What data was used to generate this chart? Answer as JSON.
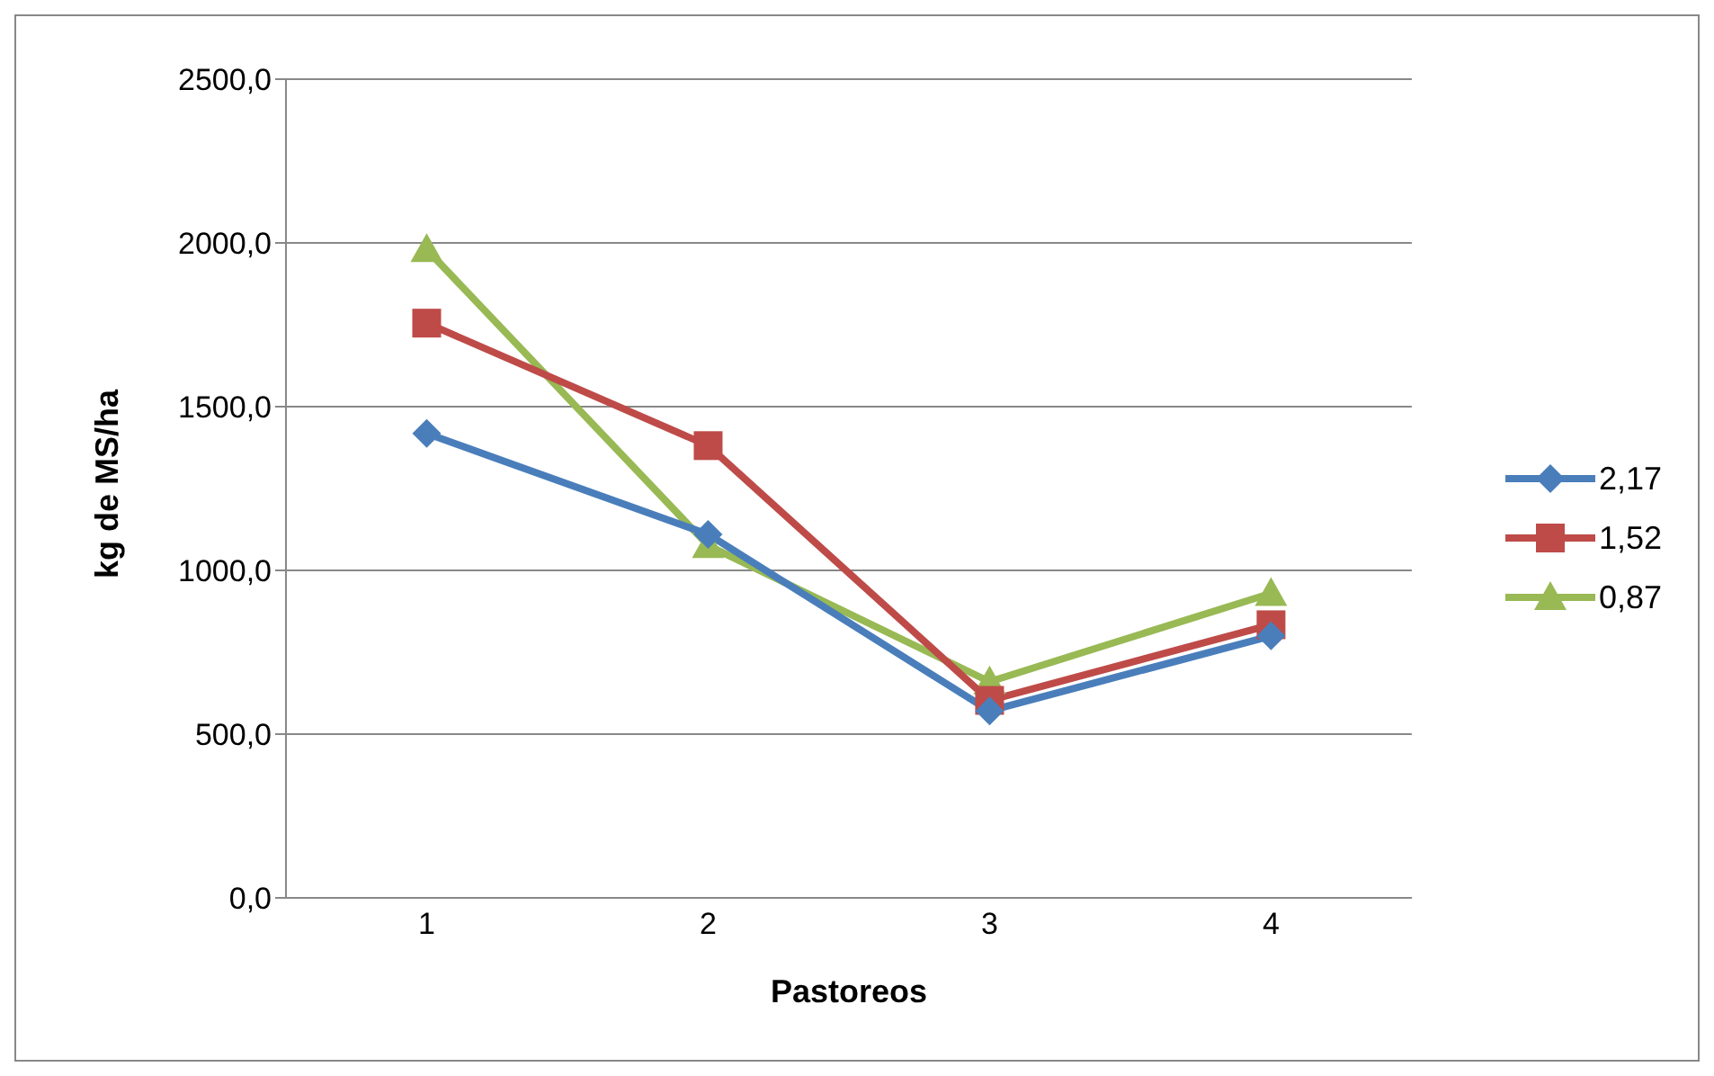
{
  "chart_data": {
    "type": "line",
    "xlabel": "Pastoreos",
    "ylabel": "kg de MS/ha",
    "categories": [
      "1",
      "2",
      "3",
      "4"
    ],
    "series": [
      {
        "name": "2,17",
        "color": "#4a7ebb",
        "marker": "diamond",
        "values": [
          1418,
          1110,
          571,
          800
        ]
      },
      {
        "name": "1,52",
        "color": "#be4b48",
        "marker": "square",
        "values": [
          1755,
          1381,
          603,
          834
        ]
      },
      {
        "name": "0,87",
        "color": "#98b954",
        "marker": "triangle",
        "values": [
          1980,
          1076,
          660,
          930
        ]
      }
    ],
    "ylim": [
      0,
      2500
    ],
    "yticks": [
      {
        "value": 0,
        "label": "0,0"
      },
      {
        "value": 500,
        "label": "500,0"
      },
      {
        "value": 1000,
        "label": "1000,0"
      },
      {
        "value": 1500,
        "label": "1500,0"
      },
      {
        "value": 2000,
        "label": "2000,0"
      },
      {
        "value": 2500,
        "label": "2500,0"
      }
    ],
    "grid": "y",
    "legend": "right",
    "line_style": "solid"
  }
}
